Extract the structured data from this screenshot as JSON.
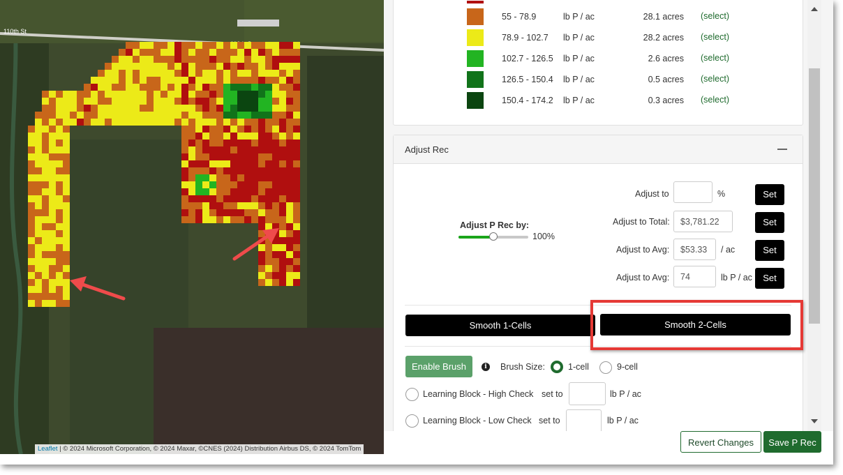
{
  "map": {
    "road_labels": [
      "110th St",
      "110th St"
    ],
    "attribution_link": "Leaflet",
    "attribution_text": "| © 2024 Microsoft Corporation, © 2024 Maxar, ©CNES (2024) Distribution Airbus DS, © 2024 TomTom",
    "colors": {
      "red": "#b00f0f",
      "orange": "#c8661a",
      "yellow": "#ecea18",
      "lightgreen": "#22b422",
      "green": "#11731a",
      "darkgreen": "#0b4510"
    }
  },
  "legend": {
    "rows": [
      {
        "range": "55 - 78.9",
        "unit": "lb P / ac",
        "acres": "28.1 acres",
        "select": "(select)",
        "color": "#c8661a"
      },
      {
        "range": "78.9 - 102.7",
        "unit": "lb P / ac",
        "acres": "28.2 acres",
        "select": "(select)",
        "color": "#ecea18"
      },
      {
        "range": "102.7 - 126.5",
        "unit": "lb P / ac",
        "acres": "2.6 acres",
        "select": "(select)",
        "color": "#22b422"
      },
      {
        "range": "126.5 - 150.4",
        "unit": "lb P / ac",
        "acres": "0.5 acres",
        "select": "(select)",
        "color": "#11731a"
      },
      {
        "range": "150.4 - 174.2",
        "unit": "lb P / ac",
        "acres": "0.3 acres",
        "select": "(select)",
        "color": "#0b4510"
      }
    ]
  },
  "adjust": {
    "title": "Adjust Rec",
    "slider_label": "Adjust P Rec by:",
    "slider_value": "100%",
    "slider_fraction": 0.5,
    "adjust_to_label": "Adjust to",
    "adjust_to_value": "",
    "adjust_to_unit": "%",
    "total_label": "Adjust to Total:",
    "total_value": "$3,781.22",
    "avg_label": "Adjust to Avg:",
    "avg_value": "$53.33",
    "avg_unit": "/ ac",
    "avg2_label": "Adjust to Avg:",
    "avg2_value": "74",
    "avg2_unit": "lb P / ac",
    "set_label": "Set",
    "smooth1": "Smooth 1-Cells",
    "smooth2": "Smooth 2-Cells",
    "enable_brush": "Enable Brush",
    "brush_size_label": "Brush Size:",
    "brush_1": "1-cell",
    "brush_9": "9-cell",
    "high_check_label": "Learning Block - High Check",
    "low_check_label": "Learning Block - Low Check",
    "set_to": "set to",
    "lb_unit": "lb P / ac"
  },
  "footer": {
    "revert": "Revert Changes",
    "save": "Save P Rec"
  },
  "colors": {
    "accent_green": "#1f6b2e",
    "brush_green": "#5ba16a",
    "highlight_red": "#e53935",
    "arrow_red": "#ef4b4b"
  }
}
